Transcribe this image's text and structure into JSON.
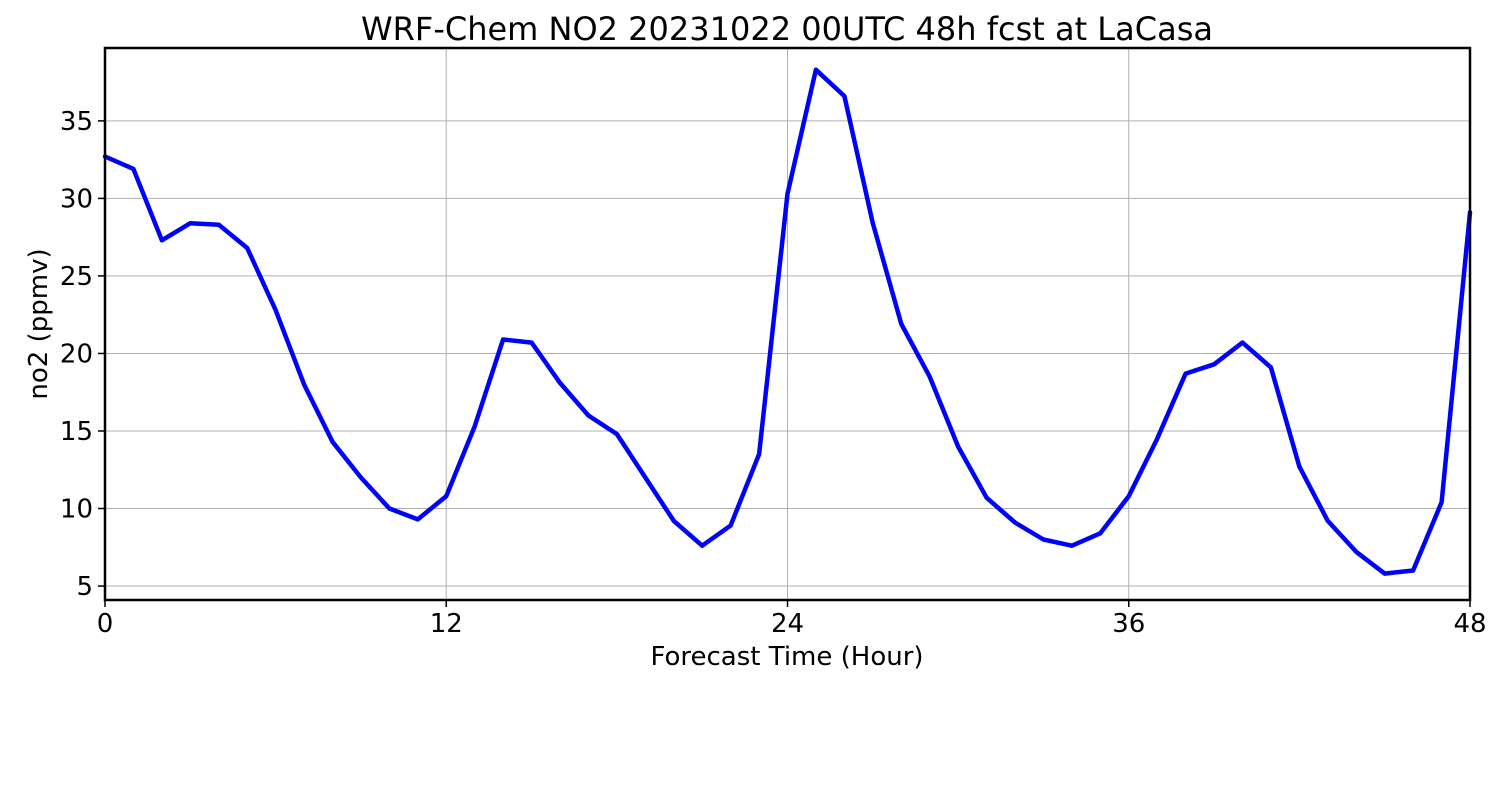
{
  "chart_data": {
    "type": "line",
    "title": "WRF-Chem NO2  20231022 00UTC 48h fcst at LaCasa",
    "xlabel": "Forecast Time (Hour)",
    "ylabel": "no2  (ppmv)",
    "xlim": [
      0,
      48
    ],
    "ylim": [
      4.1,
      39.7
    ],
    "xticks": [
      0,
      12,
      24,
      36,
      48
    ],
    "yticks": [
      5,
      10,
      15,
      20,
      25,
      30,
      35
    ],
    "grid": true,
    "series": [
      {
        "color": "#0000ff",
        "x": [
          0,
          1,
          2,
          3,
          4,
          5,
          6,
          7,
          8,
          9,
          10,
          11,
          12,
          13,
          14,
          15,
          16,
          17,
          18,
          19,
          20,
          21,
          22,
          23,
          24,
          25,
          26,
          27,
          28,
          29,
          30,
          31,
          32,
          33,
          34,
          35,
          36,
          37,
          38,
          39,
          40,
          41,
          42,
          43,
          44,
          45,
          46,
          47,
          48
        ],
        "values": [
          32.7,
          31.9,
          27.3,
          28.4,
          28.3,
          26.8,
          22.8,
          18.0,
          14.3,
          12.0,
          10.0,
          9.3,
          10.8,
          15.3,
          20.9,
          20.7,
          18.1,
          16.0,
          14.8,
          12.0,
          9.2,
          7.6,
          8.9,
          13.5,
          30.3,
          38.3,
          36.6,
          28.4,
          21.9,
          18.5,
          14.0,
          10.7,
          9.1,
          8.0,
          7.6,
          8.4,
          10.8,
          14.5,
          18.7,
          19.3,
          20.7,
          19.1,
          12.7,
          9.2,
          7.2,
          5.8,
          6.0,
          10.4,
          29.1
        ]
      }
    ]
  }
}
